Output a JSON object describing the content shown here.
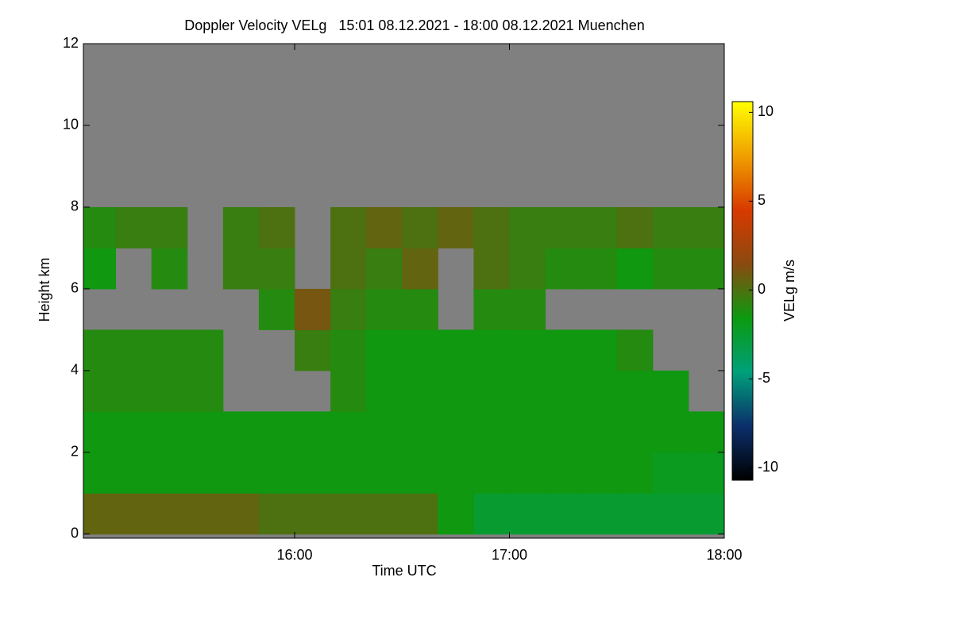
{
  "chart_data": {
    "type": "heatmap",
    "title": "Doppler Velocity VELg   15:01 08.12.2021 - 18:00 08.12.2021 Muenchen",
    "x_label": "Time UTC",
    "y_label": "Height km",
    "xlim": [
      15.0167,
      18.0
    ],
    "xticks": [
      {
        "value": 16,
        "label": "16:00"
      },
      {
        "value": 17,
        "label": "17:00"
      },
      {
        "value": 18,
        "label": "18:00"
      }
    ],
    "ylim": [
      -0.1,
      12
    ],
    "yticks": [
      0,
      2,
      4,
      6,
      8,
      10,
      12
    ],
    "xbins": [
      15.0167,
      15.1667,
      15.3333,
      15.5,
      15.6667,
      15.8333,
      16,
      16.1667,
      16.3333,
      16.5,
      16.6667,
      16.8333,
      17,
      17.1667,
      17.3333,
      17.5,
      17.6667,
      17.8333,
      18
    ],
    "ybins": [
      0,
      1,
      2,
      3,
      4,
      5,
      6,
      7,
      8,
      9,
      10,
      11,
      12
    ],
    "z": [
      [
        0.5,
        0.5,
        0.5,
        0.5,
        0.5,
        0,
        0,
        0,
        0,
        0,
        -1.5,
        -2.5,
        -2.5,
        -2.5,
        -2.5,
        -2.5,
        -2.5,
        -2.5
      ],
      [
        -1.5,
        -1.5,
        -1.5,
        -1.5,
        -1.5,
        -1.5,
        -1.5,
        -1.5,
        -1.5,
        -1.5,
        -1.5,
        -1.5,
        -1.5,
        -1.5,
        -1.5,
        -1.5,
        -2,
        -2
      ],
      [
        -1.5,
        -1.5,
        -1.5,
        -1.5,
        -1.5,
        -1.5,
        -1.5,
        -1.5,
        -1.5,
        -1.5,
        -1.5,
        -1.5,
        -1.5,
        -1.5,
        -1.5,
        -1.5,
        -1.5,
        -1.5
      ],
      [
        -1,
        -1,
        -1,
        -1,
        null,
        null,
        null,
        -1,
        -1.5,
        -1.5,
        -1.5,
        -1.5,
        -1.5,
        -1.5,
        -1.5,
        -1.5,
        -1.5,
        null
      ],
      [
        -1,
        -1,
        -1,
        -1,
        null,
        null,
        -0.5,
        -1,
        -1.5,
        -1.5,
        -1.5,
        -1.5,
        -1.5,
        -1.5,
        -1.5,
        -1,
        null,
        null
      ],
      [
        null,
        null,
        null,
        null,
        null,
        -1,
        1,
        -0.5,
        -1,
        -1,
        null,
        -1,
        -1,
        null,
        null,
        null,
        null,
        null
      ],
      [
        -1.5,
        null,
        -1,
        null,
        -0.5,
        -0.5,
        null,
        0,
        -0.5,
        0.5,
        null,
        0,
        -0.5,
        -1,
        -1,
        -1.5,
        -1,
        -1
      ],
      [
        -1,
        -0.5,
        -0.5,
        null,
        -0.5,
        0,
        null,
        0,
        0.5,
        0,
        0.5,
        0,
        -0.5,
        -0.5,
        -0.5,
        0,
        -0.5,
        -0.5
      ],
      [
        null,
        null,
        null,
        null,
        null,
        null,
        null,
        null,
        null,
        null,
        null,
        null,
        null,
        null,
        null,
        null,
        null,
        null
      ],
      [
        null,
        null,
        null,
        null,
        null,
        null,
        null,
        null,
        null,
        null,
        null,
        null,
        null,
        null,
        null,
        null,
        null,
        null
      ],
      [
        null,
        null,
        null,
        null,
        null,
        null,
        null,
        null,
        null,
        null,
        null,
        null,
        null,
        null,
        null,
        null,
        null,
        null
      ],
      [
        null,
        null,
        null,
        null,
        null,
        null,
        null,
        null,
        null,
        null,
        null,
        null,
        null,
        null,
        null,
        null,
        null,
        null
      ]
    ],
    "nodata_color": "#808080",
    "colormap": [
      "#000000",
      "#0b2f6b",
      "#00a07a",
      "#0c9a10",
      "#8a4a10",
      "#d83a00",
      "#f0a000",
      "#ffff00"
    ],
    "colorbar": {
      "label": "VELg m/s",
      "clim": [
        -10.7,
        10.6
      ],
      "ticks": [
        -10,
        -5,
        0,
        5,
        10
      ]
    }
  }
}
